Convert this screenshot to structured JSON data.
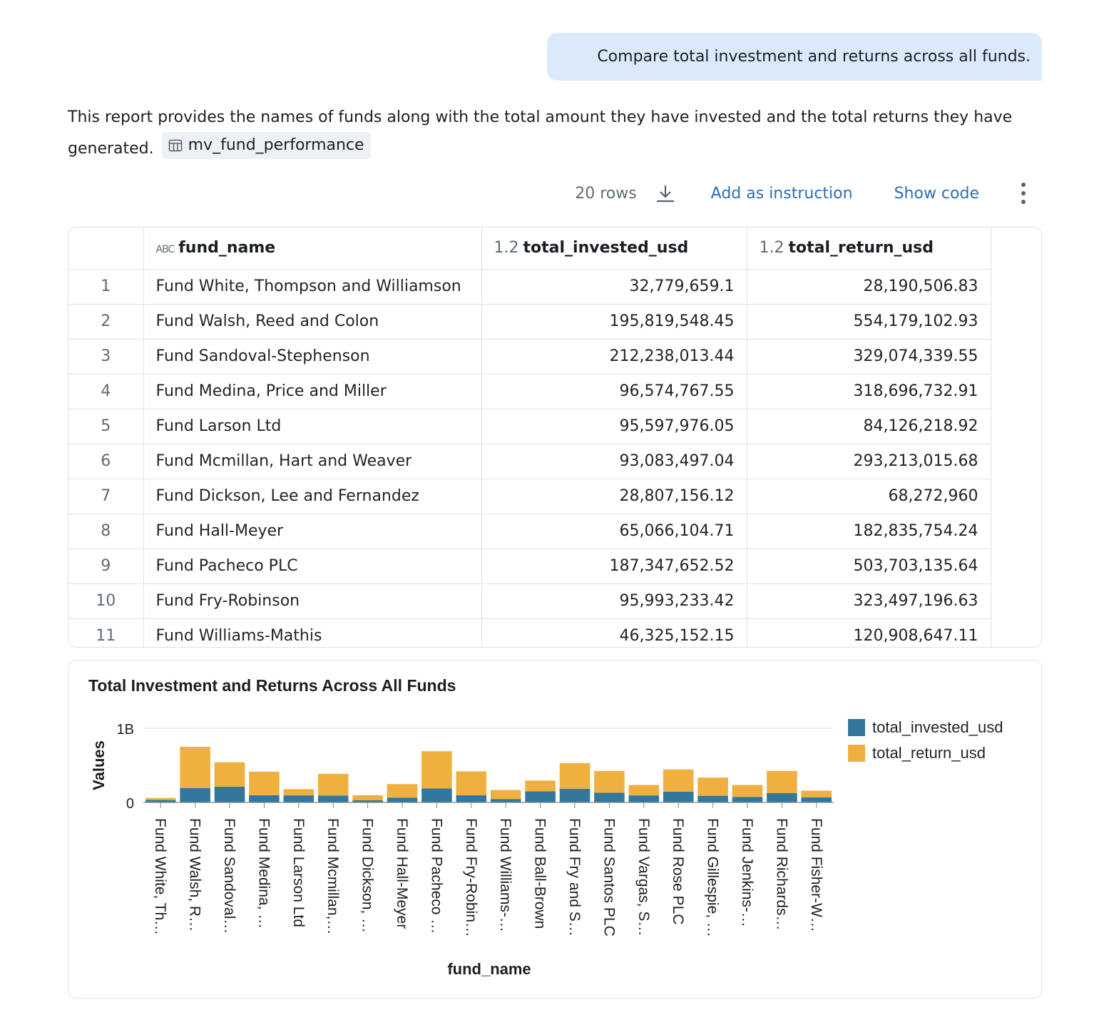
{
  "chat": {
    "user_message": "Compare total investment and returns across all funds.",
    "assistant_text": "This report provides the names of funds along with the total amount they have invested and the total returns they have generated.",
    "source_table": "mv_fund_performance"
  },
  "toolbar": {
    "row_count": "20 rows",
    "add_instruction": "Add as instruction",
    "show_code": "Show code"
  },
  "table": {
    "columns": [
      {
        "type_icon": "abc-icon",
        "type_label": "ABC",
        "name": "fund_name"
      },
      {
        "type_icon": "decimal-icon",
        "type_label": "1.2",
        "name": "total_invested_usd"
      },
      {
        "type_icon": "decimal-icon",
        "type_label": "1.2",
        "name": "total_return_usd"
      }
    ],
    "rows": [
      {
        "idx": "1",
        "fund": "Fund White, Thompson and Williamson",
        "invested": "32,779,659.1",
        "ret": "28,190,506.83"
      },
      {
        "idx": "2",
        "fund": "Fund Walsh, Reed and Colon",
        "invested": "195,819,548.45",
        "ret": "554,179,102.93"
      },
      {
        "idx": "3",
        "fund": "Fund Sandoval-Stephenson",
        "invested": "212,238,013.44",
        "ret": "329,074,339.55"
      },
      {
        "idx": "4",
        "fund": "Fund Medina, Price and Miller",
        "invested": "96,574,767.55",
        "ret": "318,696,732.91"
      },
      {
        "idx": "5",
        "fund": "Fund Larson Ltd",
        "invested": "95,597,976.05",
        "ret": "84,126,218.92"
      },
      {
        "idx": "6",
        "fund": "Fund Mcmillan, Hart and Weaver",
        "invested": "93,083,497.04",
        "ret": "293,213,015.68"
      },
      {
        "idx": "7",
        "fund": "Fund Dickson, Lee and Fernandez",
        "invested": "28,807,156.12",
        "ret": "68,272,960"
      },
      {
        "idx": "8",
        "fund": "Fund Hall-Meyer",
        "invested": "65,066,104.71",
        "ret": "182,835,754.24"
      },
      {
        "idx": "9",
        "fund": "Fund Pacheco PLC",
        "invested": "187,347,652.52",
        "ret": "503,703,135.64"
      },
      {
        "idx": "10",
        "fund": "Fund Fry-Robinson",
        "invested": "95,993,233.42",
        "ret": "323,497,196.63"
      },
      {
        "idx": "11",
        "fund": "Fund Williams-Mathis",
        "invested": "46,325,152.15",
        "ret": "120,908,647.11"
      }
    ]
  },
  "chart_data": {
    "type": "bar",
    "stacked": true,
    "title": "Total Investment and Returns Across All Funds",
    "xlabel": "fund_name",
    "ylabel": "Values",
    "ylim": [
      0,
      1000000000
    ],
    "y_ticks": [
      "0",
      "1B"
    ],
    "grid": true,
    "legend_position": "top-right",
    "categories": [
      "Fund White, Th…",
      "Fund Walsh, R…",
      "Fund Sandoval…",
      "Fund Medina, …",
      "Fund Larson Ltd",
      "Fund Mcmillan,…",
      "Fund Dickson, …",
      "Fund Hall-Meyer",
      "Fund Pacheco …",
      "Fund Fry-Robin…",
      "Fund Williams-…",
      "Fund Ball-Brown",
      "Fund Fry and S…",
      "Fund Santos PLC",
      "Fund Vargas, S…",
      "Fund Rose PLC",
      "Fund Gillespie, …",
      "Fund Jenkins-…",
      "Fund Richards…",
      "Fund Fisher-W…"
    ],
    "series": [
      {
        "name": "total_invested_usd",
        "color": "#33779c",
        "values": [
          32779659.1,
          195819548.45,
          212238013.44,
          96574767.55,
          95597976.05,
          93083497.04,
          28807156.12,
          65066104.71,
          187347652.52,
          95993233.42,
          46325152.15,
          150000000,
          185000000,
          130000000,
          95000000,
          145000000,
          90000000,
          75000000,
          125000000,
          70000000
        ]
      },
      {
        "name": "total_return_usd",
        "color": "#f0b03f",
        "values": [
          28190506.83,
          554179102.93,
          329074339.55,
          318696732.91,
          84126218.92,
          293213015.68,
          68272960,
          182835754.24,
          503703135.64,
          323497196.63,
          120908647.11,
          145000000,
          345000000,
          295000000,
          140000000,
          300000000,
          245000000,
          160000000,
          300000000,
          90000000
        ]
      }
    ]
  }
}
